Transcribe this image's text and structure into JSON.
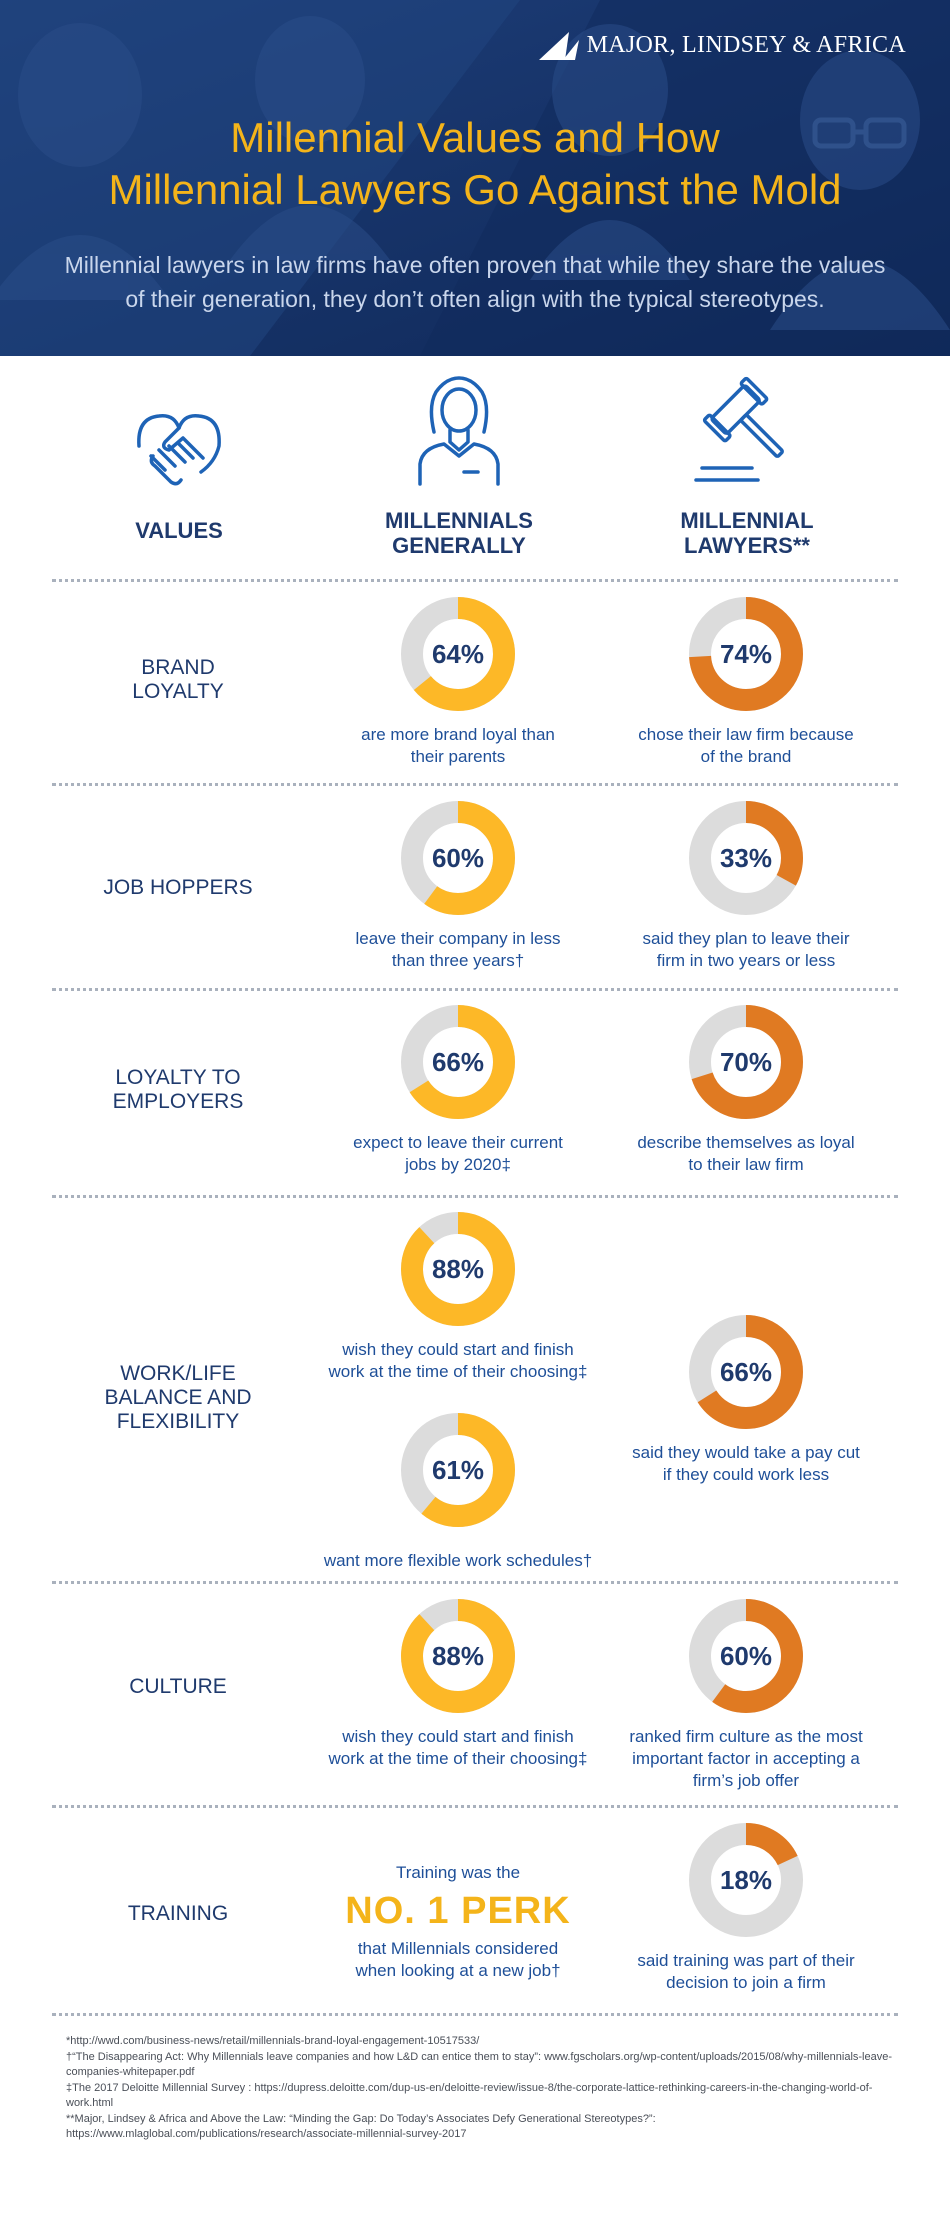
{
  "header": {
    "logo_text": "MAJOR, LINDSEY & AFRICA",
    "title_line1": "Millennial Values and How",
    "title_line2": "Millennial Lawyers Go Against the Mold",
    "subtitle": "Millennial lawyers in law firms have often proven that while they share the values of their generation, they don’t often align with the typical stereotypes."
  },
  "columns": {
    "values": {
      "label": "VALUES",
      "icon": "handshake-icon"
    },
    "millennials": {
      "label_line1": "MILLENNIALS",
      "label_line2": "GENERALLY",
      "icon": "person-icon"
    },
    "lawyers": {
      "label_line1": "MILLENNIAL",
      "label_line2": "LAWYERS**",
      "icon": "gavel-icon"
    }
  },
  "colors": {
    "millennials_accent": "#fdb827",
    "lawyers_accent": "#e07a22",
    "track": "#dcdcdc",
    "navy": "#1f3a6d",
    "header_bg": "#17346a",
    "title": "#f4b41a"
  },
  "rows": [
    {
      "label_line1": "BRAND",
      "label_line2": "LOYALTY",
      "millennials": {
        "value": 64,
        "display": "64%",
        "desc_line1": "are more brand loyal than",
        "desc_line2": "their parents"
      },
      "lawyers": {
        "value": 74,
        "display": "74%",
        "desc_line1": "chose their law firm because",
        "desc_line2": "of the brand"
      }
    },
    {
      "label_line1": "JOB HOPPERS",
      "millennials": {
        "value": 60,
        "display": "60%",
        "desc_line1": "leave their company in less",
        "desc_line2": "than three years†"
      },
      "lawyers": {
        "value": 33,
        "display": "33%",
        "desc_line1": "said they plan to leave their",
        "desc_line2": "firm in two years or less"
      }
    },
    {
      "label_line1": "LOYALTY TO",
      "label_line2": "EMPLOYERS",
      "millennials": {
        "value": 66,
        "display": "66%",
        "desc_line1": "expect to leave their current",
        "desc_line2": "jobs by 2020‡"
      },
      "lawyers": {
        "value": 70,
        "display": "70%",
        "desc_line1": "describe themselves as loyal",
        "desc_line2": "to their law firm"
      }
    },
    {
      "label_line1": "WORK/LIFE",
      "label_line2": "BALANCE AND",
      "label_line3": "FLEXIBILITY",
      "millennials_a": {
        "value": 88,
        "display": "88%",
        "desc_line1": "wish they could start and finish",
        "desc_line2": "work at the time of their choosing‡"
      },
      "millennials_b": {
        "value": 61,
        "display": "61%",
        "desc_line1": "want more flexible work schedules†"
      },
      "lawyers": {
        "value": 66,
        "display": "66%",
        "desc_line1": "said they would take a pay cut",
        "desc_line2": "if they could work less"
      }
    },
    {
      "label_line1": "CULTURE",
      "millennials": {
        "value": 88,
        "display": "88%",
        "desc_line1": "wish they could start and finish",
        "desc_line2": "work at the time of their choosing‡"
      },
      "lawyers": {
        "value": 60,
        "display": "60%",
        "desc_line1": "ranked firm culture as the most",
        "desc_line2": "important factor in accepting a",
        "desc_line3": "firm’s job offer"
      }
    },
    {
      "label_line1": "TRAINING",
      "millennials_perk": {
        "line1": "Training was the",
        "big": "NO. 1 PERK",
        "line2": "that Millennials considered",
        "line3": "when looking at a new job†"
      },
      "lawyers": {
        "value": 18,
        "display": "18%",
        "desc_line1": "said training was part of their",
        "desc_line2": "decision to join a firm"
      }
    }
  ],
  "footnotes": [
    "*http://wwd.com/business-news/retail/millennials-brand-loyal-engagement-10517533/",
    "†“The Disappearing Act: Why Millennials leave companies and how L&D can entice them to stay”: www.fgscholars.org/wp-content/uploads/2015/08/why-millennials-leave-companies-whitepaper.pdf",
    "‡The 2017 Deloitte Millennial Survey : https://dupress.deloitte.com/dup-us-en/deloitte-review/issue-8/the-corporate-lattice-rethinking-careers-in-the-changing-world-of-work.html",
    "**Major, Lindsey & Africa and Above the Law: “Minding the Gap: Do Today’s Associates Defy Generational Stereotypes?”: https://www.mlaglobal.com/publications/research/associate-millennial-survey-2017"
  ],
  "chart_data": [
    {
      "type": "pie",
      "title": "BRAND LOYALTY",
      "series": [
        {
          "name": "MILLENNIALS GENERALLY",
          "values": [
            64
          ]
        },
        {
          "name": "MILLENNIAL LAWYERS**",
          "values": [
            74
          ]
        }
      ]
    },
    {
      "type": "pie",
      "title": "JOB HOPPERS",
      "series": [
        {
          "name": "MILLENNIALS GENERALLY",
          "values": [
            60
          ]
        },
        {
          "name": "MILLENNIAL LAWYERS**",
          "values": [
            33
          ]
        }
      ]
    },
    {
      "type": "pie",
      "title": "LOYALTY TO EMPLOYERS",
      "series": [
        {
          "name": "MILLENNIALS GENERALLY",
          "values": [
            66
          ]
        },
        {
          "name": "MILLENNIAL LAWYERS**",
          "values": [
            70
          ]
        }
      ]
    },
    {
      "type": "pie",
      "title": "WORK/LIFE BALANCE AND FLEXIBILITY",
      "series": [
        {
          "name": "MILLENNIALS GENERALLY",
          "values": [
            88,
            61
          ]
        },
        {
          "name": "MILLENNIAL LAWYERS**",
          "values": [
            66
          ]
        }
      ]
    },
    {
      "type": "pie",
      "title": "CULTURE",
      "series": [
        {
          "name": "MILLENNIALS GENERALLY",
          "values": [
            88
          ]
        },
        {
          "name": "MILLENNIAL LAWYERS**",
          "values": [
            60
          ]
        }
      ]
    },
    {
      "type": "pie",
      "title": "TRAINING",
      "series": [
        {
          "name": "MILLENNIAL LAWYERS**",
          "values": [
            18
          ]
        }
      ]
    }
  ]
}
